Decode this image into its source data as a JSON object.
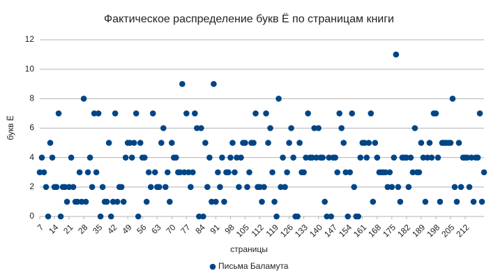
{
  "chart_data": {
    "type": "scatter",
    "title": "Фактическое распределение букв Ё по страницам книги",
    "x_label": "страницы",
    "y_label": "букв Ё",
    "categories": [
      "7",
      null,
      null,
      null,
      null,
      null,
      null,
      "14",
      null,
      null,
      null,
      null,
      null,
      null,
      "21",
      null,
      null,
      null,
      null,
      null,
      null,
      "28",
      null,
      null,
      null,
      null,
      null,
      null,
      "35",
      null,
      null,
      null,
      null,
      null,
      null,
      "42",
      null,
      null,
      null,
      null,
      null,
      null,
      "49",
      null,
      null,
      null,
      null,
      null,
      null,
      "56",
      null,
      null,
      null,
      null,
      null,
      null,
      "63",
      null,
      null,
      null,
      null,
      null,
      null,
      "70",
      null,
      null,
      null,
      null,
      null,
      null,
      "77",
      null,
      null,
      null,
      null,
      null,
      null,
      "84",
      null,
      null,
      null,
      null,
      null,
      null,
      "91",
      null,
      null,
      null,
      null,
      null,
      null,
      "98",
      null,
      null,
      null,
      null,
      null,
      null,
      "105",
      null,
      null,
      null,
      null,
      null,
      null,
      "112",
      null,
      null,
      null,
      null,
      null,
      null,
      "119",
      null,
      null,
      null,
      null,
      null,
      null,
      "126",
      null,
      null,
      null,
      null,
      null,
      null,
      "133",
      null,
      null,
      null,
      null,
      null,
      null,
      "140",
      null,
      null,
      null,
      null,
      null,
      null,
      "147",
      null,
      null,
      null,
      null,
      null,
      null,
      "154",
      null,
      null,
      null,
      null,
      null,
      null,
      "161",
      null,
      null,
      null,
      null,
      null,
      null,
      "168",
      null,
      null,
      null,
      null,
      null,
      null,
      "175",
      null,
      null,
      null,
      null,
      null,
      null,
      "182",
      null,
      null,
      null,
      null,
      null,
      null,
      "189",
      null,
      null,
      null,
      null,
      null,
      null,
      "198",
      null,
      null,
      null,
      null,
      null,
      null,
      "205",
      null,
      null,
      null,
      null,
      null,
      null,
      "212",
      null,
      null,
      null,
      null,
      null,
      null,
      null,
      null,
      null
    ],
    "series": [
      {
        "name": "Письма Баламута",
        "color": "#004586",
        "values": [
          3,
          4,
          3,
          2,
          0,
          5,
          4,
          2,
          2,
          7,
          0,
          2,
          2,
          1,
          2,
          4,
          2,
          1,
          1,
          3,
          1,
          8,
          1,
          3,
          4,
          2,
          7,
          3,
          7,
          0,
          2,
          1,
          1,
          5,
          0,
          1,
          7,
          1,
          2,
          2,
          1,
          4,
          5,
          5,
          4,
          5,
          7,
          0,
          5,
          4,
          4,
          1,
          3,
          2,
          7,
          3,
          2,
          2,
          5,
          6,
          2,
          3,
          1,
          5,
          4,
          4,
          3,
          3,
          9,
          3,
          7,
          3,
          2,
          3,
          7,
          6,
          0,
          6,
          0,
          5,
          2,
          4,
          1,
          9,
          1,
          3,
          2,
          4,
          1,
          3,
          3,
          4,
          5,
          3,
          4,
          2,
          4,
          5,
          5,
          2,
          3,
          5,
          5,
          7,
          2,
          2,
          1,
          2,
          7,
          5,
          6,
          3,
          1,
          0,
          8,
          2,
          4,
          2,
          3,
          5,
          6,
          4,
          0,
          0,
          5,
          3,
          3,
          4,
          7,
          4,
          4,
          6,
          4,
          6,
          4,
          4,
          1,
          0,
          4,
          0,
          4,
          4,
          3,
          7,
          6,
          5,
          3,
          0,
          3,
          7,
          2,
          0,
          0,
          4,
          5,
          5,
          4,
          5,
          7,
          1,
          5,
          4,
          3,
          3,
          3,
          3,
          2,
          3,
          2,
          4,
          11,
          2,
          1,
          4,
          4,
          4,
          2,
          4,
          3,
          6,
          3,
          3,
          5,
          4,
          1,
          4,
          5,
          4,
          7,
          7,
          4,
          1,
          5,
          5,
          5,
          5,
          5,
          8,
          2,
          1,
          5,
          2,
          4,
          4,
          4,
          2,
          4,
          1,
          4,
          4,
          7,
          1,
          3
        ]
      }
    ],
    "ylim": [
      0,
      12
    ],
    "yticks": [
      0,
      2,
      4,
      6,
      8,
      10,
      12
    ],
    "grid": true,
    "legend": "bottom"
  }
}
